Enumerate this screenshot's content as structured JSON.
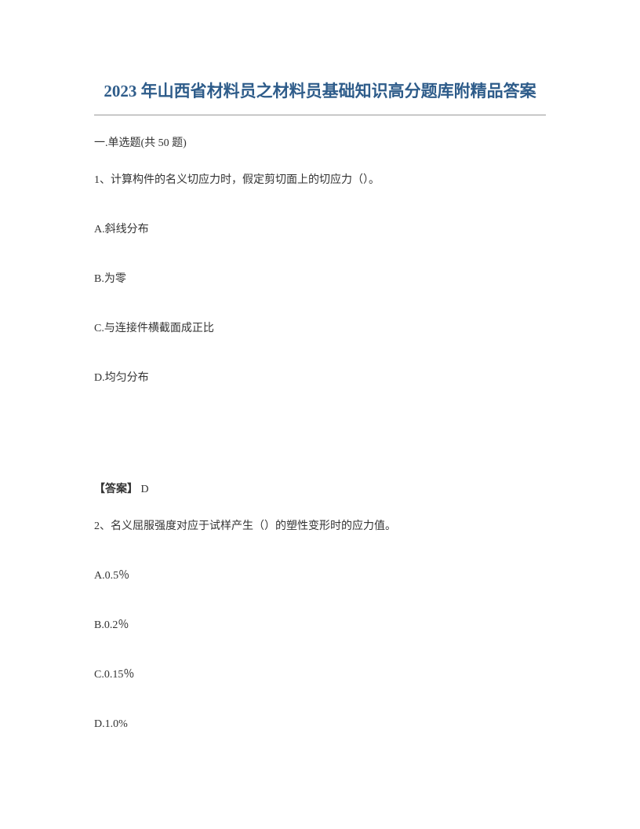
{
  "title": "2023 年山西省材料员之材料员基础知识高分题库附精品答案",
  "section_heading": "一.单选题(共 50 题)",
  "question1": {
    "text": "1、计算构件的名义切应力时，假定剪切面上的切应力（）。",
    "options": {
      "a": "A.斜线分布",
      "b": "B.为零",
      "c": "C.与连接件横截面成正比",
      "d": "D.均匀分布"
    },
    "answer_label": "【答案】",
    "answer_value": " D"
  },
  "question2": {
    "text": "2、名义屈服强度对应于试样产生（）的塑性变形时的应力值。",
    "options": {
      "a": "A.0.5％",
      "b": "B.0.2％",
      "c": "C.0.15％",
      "d": "D.1.0%"
    }
  },
  "styling": {
    "title_color": "#2e5c8a",
    "title_fontsize": 21,
    "body_fontsize": 14,
    "text_color": "#333333",
    "background_color": "#ffffff",
    "border_color": "#999999",
    "font_family": "SimSun"
  }
}
